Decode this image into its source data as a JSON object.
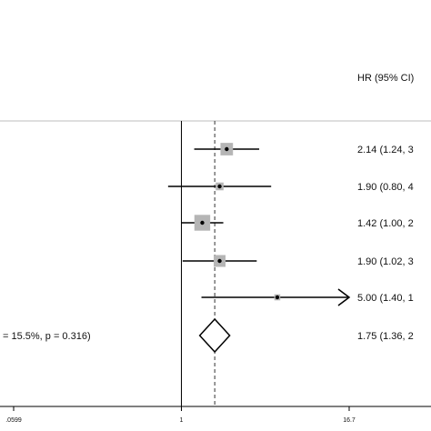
{
  "chart_data": {
    "type": "forest",
    "column_header": "HR (95% CI)",
    "studies": [
      {
        "hr": 2.14,
        "lo": 1.24,
        "hi": 3.69,
        "weight": 0.3,
        "label": "2.14 (1.24, 3"
      },
      {
        "hr": 1.9,
        "lo": 0.8,
        "hi": 4.51,
        "weight": 0.05,
        "label": "1.90 (0.80, 4"
      },
      {
        "hr": 1.42,
        "lo": 1.0,
        "hi": 2.02,
        "weight": 0.6,
        "label": "1.42 (1.00, 2"
      },
      {
        "hr": 1.9,
        "lo": 1.02,
        "hi": 3.54,
        "weight": 0.25,
        "label": "1.90 (1.02, 3"
      },
      {
        "hr": 5.0,
        "lo": 1.4,
        "hi": 16.7,
        "weight": 0.01,
        "arrow": true,
        "label": "5.00 (1.40, 1"
      }
    ],
    "overall": {
      "hr": 1.75,
      "lo": 1.36,
      "hi": 2.25,
      "label": "1.75 (1.36, 2",
      "heterogeneity_label": "= 15.5%, p = 0.316)"
    },
    "x_axis": {
      "scale": "log",
      "min": 0.0599,
      "max": 16.7,
      "ticks": [
        ".0599",
        "1",
        "16.7"
      ],
      "null_line": 1
    },
    "colors": {
      "line": "#000000",
      "box": "#b5b5b5",
      "dashed": "#333333",
      "separator": "#bdbdbd"
    }
  }
}
